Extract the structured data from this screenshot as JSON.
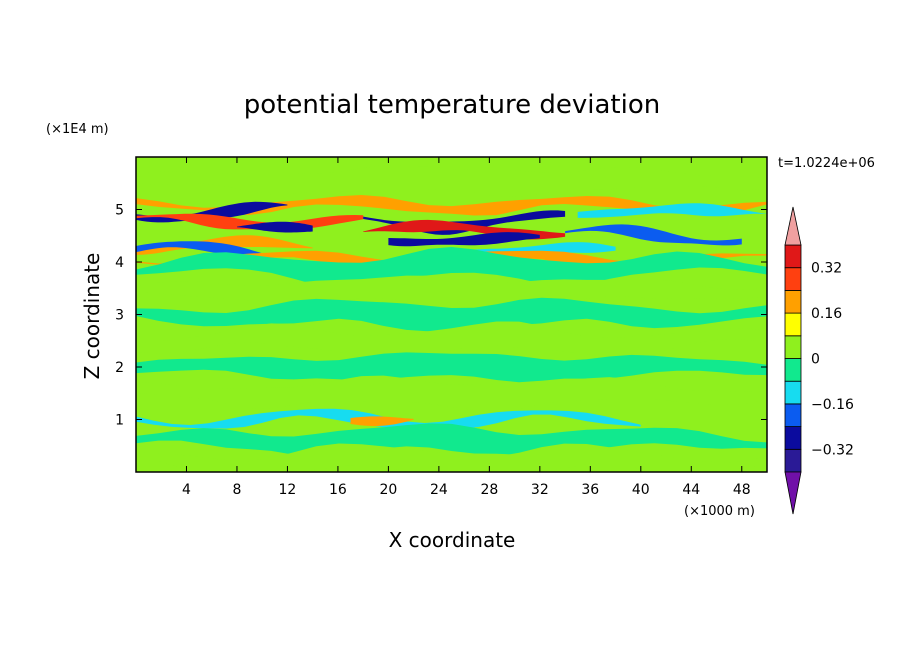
{
  "chart_data": {
    "type": "heatmap",
    "title": "potential temperature deviation",
    "xlabel": "X coordinate",
    "ylabel": "Z coordinate",
    "x_unit": "(×1000 m)",
    "y_unit": "(×1E4 m)",
    "time_label": "t=1.0224e+06",
    "xlim": [
      0,
      50
    ],
    "ylim": [
      0,
      6
    ],
    "x_ticks": [
      4,
      8,
      12,
      16,
      20,
      24,
      28,
      32,
      36,
      40,
      44,
      48
    ],
    "y_ticks": [
      1,
      2,
      3,
      4,
      5
    ],
    "x_tick_labels": [
      "4",
      "8",
      "12",
      "16",
      "20",
      "24",
      "28",
      "32",
      "36",
      "40",
      "44",
      "48"
    ],
    "y_tick_labels": [
      "1",
      "2",
      "3",
      "4",
      "5"
    ],
    "contour_levels": [
      -0.4,
      -0.32,
      -0.24,
      -0.16,
      -0.08,
      0,
      0.08,
      0.16,
      0.24,
      0.32,
      0.4
    ],
    "colorbar_labels": [
      {
        "value": 0.32,
        "text": "0.32"
      },
      {
        "value": 0.16,
        "text": "0.16"
      },
      {
        "value": 0,
        "text": "0"
      },
      {
        "value": -0.16,
        "text": "−0.16"
      },
      {
        "value": -0.32,
        "text": "−0.32"
      }
    ],
    "colorbar_colors": [
      "#2a1a96",
      "#0b0b9e",
      "#0b5cf0",
      "#17dcf0",
      "#11e98e",
      "#8ff01e",
      "#ffff00",
      "#ffa000",
      "#ff4010",
      "#e01818"
    ],
    "extend_low_color": "#7010a8",
    "extend_high_color": "#f0a0a0",
    "field_bands": [
      {
        "z": 5.55,
        "x_from": 0,
        "x_to": 50,
        "value": 0.02
      },
      {
        "z": 5.08,
        "x_from": 0,
        "x_to": 50,
        "value": 0.2
      },
      {
        "z": 4.95,
        "x_from": 0,
        "x_to": 12,
        "value": -0.28
      },
      {
        "z": 4.95,
        "x_from": 35,
        "x_to": 50,
        "value": -0.16
      },
      {
        "z": 4.78,
        "x_from": 0,
        "x_to": 18,
        "value": 0.24
      },
      {
        "z": 4.78,
        "x_from": 18,
        "x_to": 34,
        "value": -0.3
      },
      {
        "z": 4.62,
        "x_from": 8,
        "x_to": 14,
        "value": -0.3
      },
      {
        "z": 4.6,
        "x_from": 18,
        "x_to": 34,
        "value": 0.34
      },
      {
        "z": 4.5,
        "x_from": 34,
        "x_to": 48,
        "value": -0.2
      },
      {
        "z": 4.43,
        "x_from": 20,
        "x_to": 32,
        "value": -0.3
      },
      {
        "z": 4.3,
        "x_from": 0,
        "x_to": 14,
        "value": 0.2
      },
      {
        "z": 4.2,
        "x_from": 0,
        "x_to": 10,
        "value": -0.24
      },
      {
        "z": 4.22,
        "x_from": 26,
        "x_to": 38,
        "value": -0.16
      },
      {
        "z": 4.05,
        "x_from": 0,
        "x_to": 50,
        "value": 0.16
      },
      {
        "z": 3.9,
        "x_from": 0,
        "x_to": 50,
        "value": -0.04
      },
      {
        "z": 3.45,
        "x_from": 0,
        "x_to": 50,
        "value": 0.03
      },
      {
        "z": 3.0,
        "x_from": 0,
        "x_to": 50,
        "value": -0.03
      },
      {
        "z": 2.5,
        "x_from": 0,
        "x_to": 50,
        "value": 0.03
      },
      {
        "z": 2.0,
        "x_from": 0,
        "x_to": 50,
        "value": -0.03
      },
      {
        "z": 1.5,
        "x_from": 0,
        "x_to": 50,
        "value": 0.03
      },
      {
        "z": 1.0,
        "x_from": 0,
        "x_to": 40,
        "value": -0.16
      },
      {
        "z": 1.02,
        "x_from": 17,
        "x_to": 22,
        "value": 0.18
      },
      {
        "z": 0.6,
        "x_from": 0,
        "x_to": 50,
        "value": -0.03
      },
      {
        "z": 0.2,
        "x_from": 0,
        "x_to": 50,
        "value": 0.02
      }
    ]
  }
}
